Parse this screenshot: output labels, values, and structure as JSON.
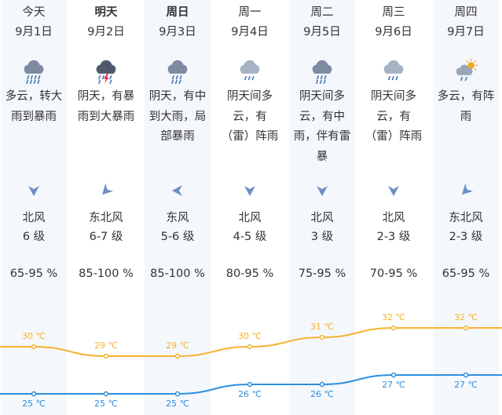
{
  "forecast": {
    "days": [
      {
        "day": "今天",
        "date": "9月1日",
        "icon": "heavy-rain-icon",
        "desc": [
          "多云，转大",
          "雨到暴雨"
        ],
        "wind_icon": "wind-direction-north-icon",
        "wind_dir": "北风",
        "wind_level": "6 级",
        "humidity": "65-95 %",
        "high": "30 ℃",
        "low": "25 ℃"
      },
      {
        "day": "明天",
        "date": "9月2日",
        "icon": "thunderstorm-icon",
        "desc": [
          "阴天，有暴",
          "雨到大暴雨"
        ],
        "wind_icon": "wind-direction-northeast-icon",
        "wind_dir": "东北风",
        "wind_level": "6-7 级",
        "humidity": "85-100 %",
        "high": "29 ℃",
        "low": "25 ℃"
      },
      {
        "day": "周日",
        "date": "9月3日",
        "icon": "moderate-rain-icon",
        "desc": [
          "阴天，有中",
          "到大雨，局",
          "部暴雨"
        ],
        "wind_icon": "wind-direction-east-icon",
        "wind_dir": "东风",
        "wind_level": "5-6 级",
        "humidity": "85-100 %",
        "high": "29 ℃",
        "low": "25 ℃"
      },
      {
        "day": "周一",
        "date": "9月4日",
        "icon": "shower-icon",
        "desc": [
          "阴天间多",
          "云，有",
          "（雷）阵雨"
        ],
        "wind_icon": "wind-direction-north-icon",
        "wind_dir": "北风",
        "wind_level": "4-5 级",
        "humidity": "80-95 %",
        "high": "30 ℃",
        "low": "26 ℃"
      },
      {
        "day": "周二",
        "date": "9月5日",
        "icon": "moderate-rain-icon",
        "desc": [
          "阴天间多",
          "云，有中",
          "雨，伴有雷",
          "暴"
        ],
        "wind_icon": "wind-direction-north-icon",
        "wind_dir": "北风",
        "wind_level": "3 级",
        "humidity": "75-95 %",
        "high": "31 ℃",
        "low": "26 ℃"
      },
      {
        "day": "周三",
        "date": "9月6日",
        "icon": "shower-icon",
        "desc": [
          "阴天间多",
          "云，有",
          "（雷）阵雨"
        ],
        "wind_icon": "wind-direction-north-icon",
        "wind_dir": "北风",
        "wind_level": "2-3 级",
        "humidity": "70-95 %",
        "high": "32 ℃",
        "low": "27 ℃"
      },
      {
        "day": "周四",
        "date": "9月7日",
        "icon": "partly-cloudy-shower-icon",
        "desc": [
          "多云，有阵",
          "雨"
        ],
        "wind_icon": "wind-direction-northeast-icon",
        "wind_dir": "东北风",
        "wind_level": "2-3 级",
        "humidity": "65-95 %",
        "high": "32 ℃",
        "low": "27 ℃"
      }
    ]
  },
  "temperature_chart": {
    "high_values": [
      30,
      29,
      29,
      30,
      31,
      32,
      32
    ],
    "low_values": [
      25,
      25,
      25,
      26,
      26,
      27,
      27
    ],
    "high_color": "#f5b332",
    "low_color": "#2e8fe0"
  },
  "colors": {
    "column_shade": "#f4f7fc",
    "icon_cloud": "#7d8aa0",
    "icon_rain": "#3d6fb5",
    "icon_sun": "#f5a623",
    "icon_lightning": "#e8303b",
    "wind_arrow": "#6c8fc4"
  }
}
